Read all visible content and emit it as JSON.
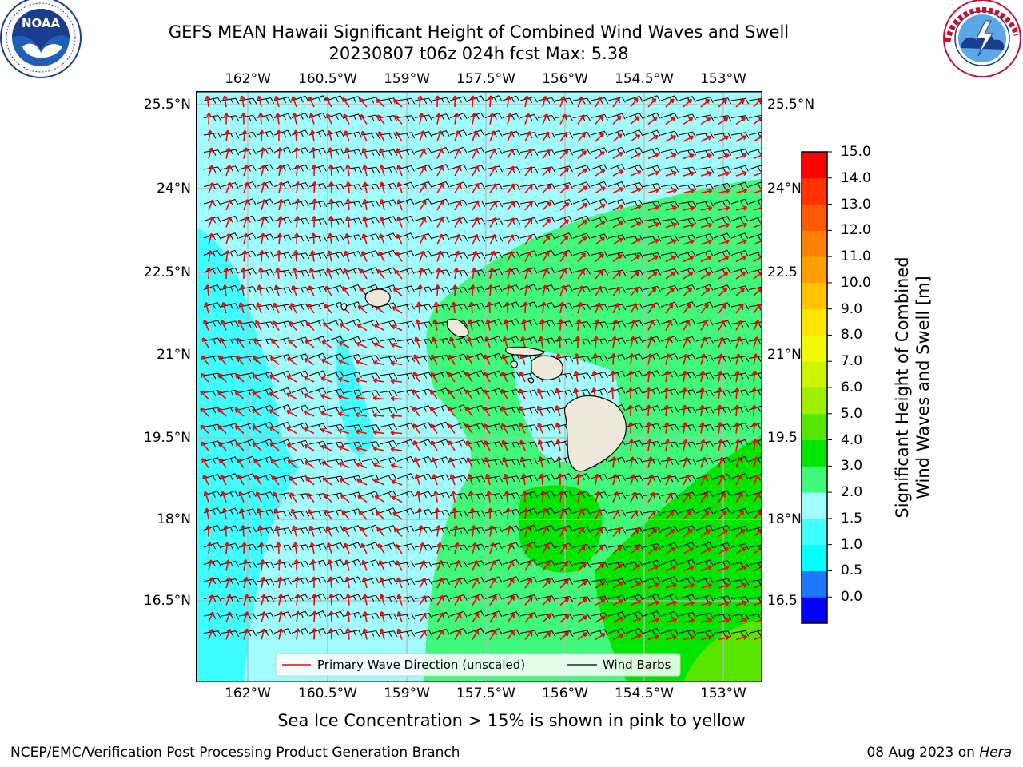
{
  "header": {
    "title_line1": "GEFS MEAN Hawaii Significant Height of Combined Wind Waves and Swell",
    "title_line2": "20230807 t06z 024h fcst   Max: 5.38"
  },
  "logos": {
    "left": "NOAA",
    "left_ring_text": "NATIONAL OCEANIC AND ATMOSPHERIC ADMINISTRATION · U.S. DEPARTMENT OF COMMERCE",
    "right_ring_text": "NATIONAL WEATHER SERVICE"
  },
  "map": {
    "lon_ticks": [
      "162°W",
      "160.5°W",
      "159°W",
      "157.5°W",
      "156°W",
      "154.5°W",
      "153°W"
    ],
    "lat_ticks_left": [
      "25.5°N",
      "24°N",
      "22.5°N",
      "21°N",
      "19.5°N",
      "18°N",
      "16.5°N"
    ],
    "lat_ticks_right": [
      "25.5°N",
      "24°N",
      "22.5",
      "21°N",
      "19.5",
      "18°N",
      "16.5"
    ],
    "field_colors": {
      "1.5-2.0": "#3ffeff",
      "2.0-3.0": "#a0fcfd",
      "3.0-4.0": "#40f87a",
      "4.0-5.0": "#00e600",
      "5.0-6.0": "#58e600"
    },
    "arrow_color": "#ff0000",
    "barb_color": "#000000",
    "land_color": "#efe9dc"
  },
  "legend": {
    "wave_direction": "Primary Wave Direction (unscaled)",
    "wind_barbs": "Wind Barbs"
  },
  "colorbar": {
    "label_line1": "Significant Height of Combined",
    "label_line2": "Wind Waves and Swell [m]",
    "ticks": [
      "15.0",
      "14.0",
      "13.0",
      "12.0",
      "11.0",
      "10.0",
      "9.0",
      "8.0",
      "7.0",
      "6.0",
      "5.0",
      "4.0",
      "3.0",
      "2.0",
      "1.5",
      "1.0",
      "0.5",
      "0.0"
    ],
    "colors_bottom_to_top": [
      "#0000ff",
      "#1e78ff",
      "#00ffff",
      "#3ffeff",
      "#a0fcfd",
      "#40f87a",
      "#00e600",
      "#58e600",
      "#9cf000",
      "#cdf500",
      "#f0fa00",
      "#ffe600",
      "#ffc300",
      "#ffa000",
      "#ff8200",
      "#ff5a00",
      "#ff3200",
      "#ff0000"
    ]
  },
  "caption": "Sea Ice Concentration > 15% is shown in pink to yellow",
  "footer": {
    "left": "NCEP/EMC/Verification Post Processing Product Generation Branch",
    "right_date": "08 Aug 2023 on ",
    "right_host": "Hera"
  }
}
